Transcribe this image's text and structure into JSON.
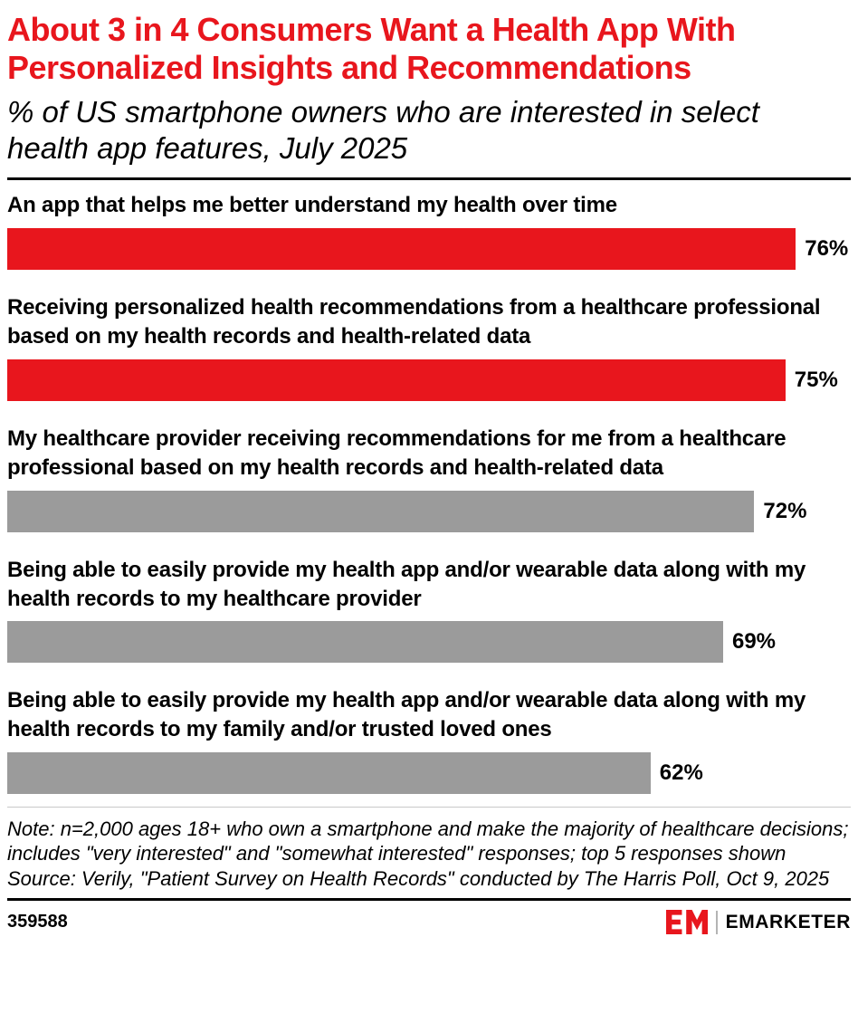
{
  "header": {
    "title": "About 3 in 4 Consumers Want a Health App With Personalized Insights and Recommendations",
    "subtitle": "% of US smartphone owners who are interested in select health app features, July 2025"
  },
  "chart_data": {
    "type": "bar",
    "orientation": "horizontal",
    "title": "About 3 in 4 Consumers Want a Health App With Personalized Insights and Recommendations",
    "subtitle": "% of US smartphone owners who are interested in select health app features, July 2025",
    "unit": "%",
    "xlim": [
      0,
      81.3
    ],
    "grid": false,
    "legend": "none",
    "categories": [
      "An app that helps me better understand my health over time",
      "Receiving personalized health recommendations from a healthcare professional based on my health records and health-related data",
      "My healthcare provider receiving recommendations for me from a healthcare professional based on my health records and health-related data",
      "Being able to easily provide my health app and/or wearable data along with my health records to my healthcare provider",
      "Being able to easily provide my health app and/or wearable data along with my health records to my family and/or trusted loved ones"
    ],
    "values": [
      76,
      75,
      72,
      69,
      62
    ],
    "value_labels": [
      "76%",
      "75%",
      "72%",
      "69%",
      "62%"
    ],
    "bar_colors": [
      "#E8161D",
      "#E8161D",
      "#9B9B9B",
      "#9B9B9B",
      "#9B9B9B"
    ]
  },
  "footer": {
    "note": "Note: n=2,000 ages 18+ who own a smartphone and make the majority of healthcare decisions; includes \"very interested\" and \"somewhat interested\" responses; top 5 responses shown",
    "source": "Source: Verily, \"Patient Survey on Health Records\" conducted by The Harris Poll, Oct 9, 2025",
    "chart_id": "359588",
    "brand_name": "EMARKETER"
  },
  "colors": {
    "accent_red": "#E8161D",
    "bar_gray": "#9B9B9B",
    "text": "#000000"
  }
}
